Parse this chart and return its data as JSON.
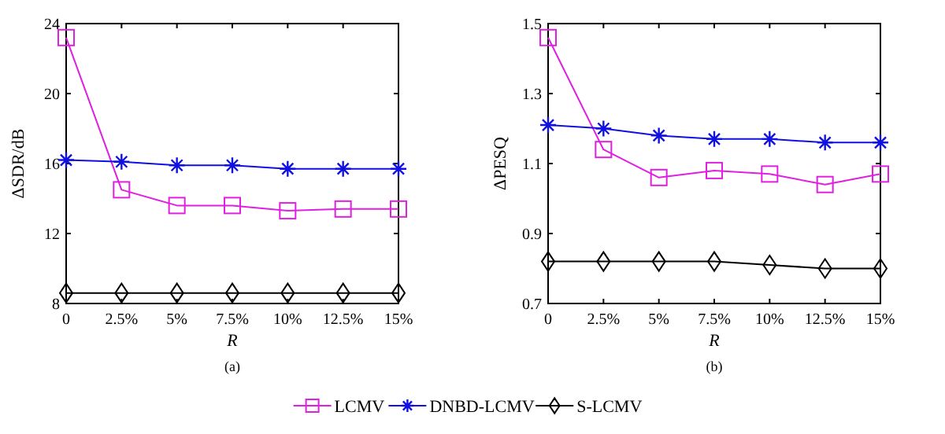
{
  "chart_data": [
    {
      "type": "line",
      "xlabel": "R",
      "ylabel": "ΔSDR/dB",
      "annotations": [
        "(a)"
      ],
      "x": [
        0,
        2.5,
        5,
        7.5,
        10,
        12.5,
        15
      ],
      "xlim": [
        0,
        15
      ],
      "xticks": [
        0,
        {
          "value": 2.5,
          "label": "2.5%"
        },
        {
          "value": 5,
          "label": "5%"
        },
        {
          "value": 7.5,
          "label": "7.5%"
        },
        {
          "value": 10,
          "label": "10%"
        },
        {
          "value": 12.5,
          "label": "12.5%"
        },
        {
          "value": 15,
          "label": "15%"
        }
      ],
      "ylim": [
        8,
        24
      ],
      "yticks": [
        8,
        12,
        16,
        20,
        24
      ],
      "grid": false,
      "line_style": "solid",
      "legend": "bottom",
      "series": [
        {
          "name": "LCMV",
          "color": "#e020e0",
          "marker": "square",
          "values": [
            23.2,
            14.5,
            13.6,
            13.6,
            13.3,
            13.4,
            13.4
          ]
        },
        {
          "name": "DNBD-LCMV",
          "color": "#1010e0",
          "marker": "cross",
          "values": [
            16.2,
            16.1,
            15.9,
            15.9,
            15.7,
            15.7,
            15.7
          ]
        },
        {
          "name": "S-LCMV",
          "color": "#000000",
          "marker": "diamond",
          "values": [
            8.6,
            8.6,
            8.6,
            8.6,
            8.6,
            8.6,
            8.6
          ]
        }
      ]
    },
    {
      "type": "line",
      "xlabel": "R",
      "ylabel": "ΔPESQ",
      "annotations": [
        "(b)"
      ],
      "x": [
        0,
        2.5,
        5,
        7.5,
        10,
        12.5,
        15
      ],
      "xlim": [
        0,
        15
      ],
      "xticks": [
        0,
        {
          "value": 2.5,
          "label": "2.5%"
        },
        {
          "value": 5,
          "label": "5%"
        },
        {
          "value": 7.5,
          "label": "7.5%"
        },
        {
          "value": 10,
          "label": "10%"
        },
        {
          "value": 12.5,
          "label": "12.5%"
        },
        {
          "value": 15,
          "label": "15%"
        }
      ],
      "ylim": [
        0.7,
        1.5
      ],
      "yticks": [
        0.7,
        0.9,
        1.1,
        1.3,
        1.5
      ],
      "grid": false,
      "line_style": "solid",
      "series": [
        {
          "color": "#e020e0",
          "marker": "square",
          "values": [
            1.46,
            1.14,
            1.06,
            1.08,
            1.07,
            1.04,
            1.07
          ]
        },
        {
          "color": "#1010e0",
          "marker": "cross",
          "values": [
            1.21,
            1.2,
            1.18,
            1.17,
            1.17,
            1.16,
            1.16
          ]
        },
        {
          "color": "#000000",
          "marker": "diamond",
          "values": [
            0.82,
            0.82,
            0.82,
            0.82,
            0.81,
            0.8,
            0.8
          ]
        }
      ]
    }
  ]
}
